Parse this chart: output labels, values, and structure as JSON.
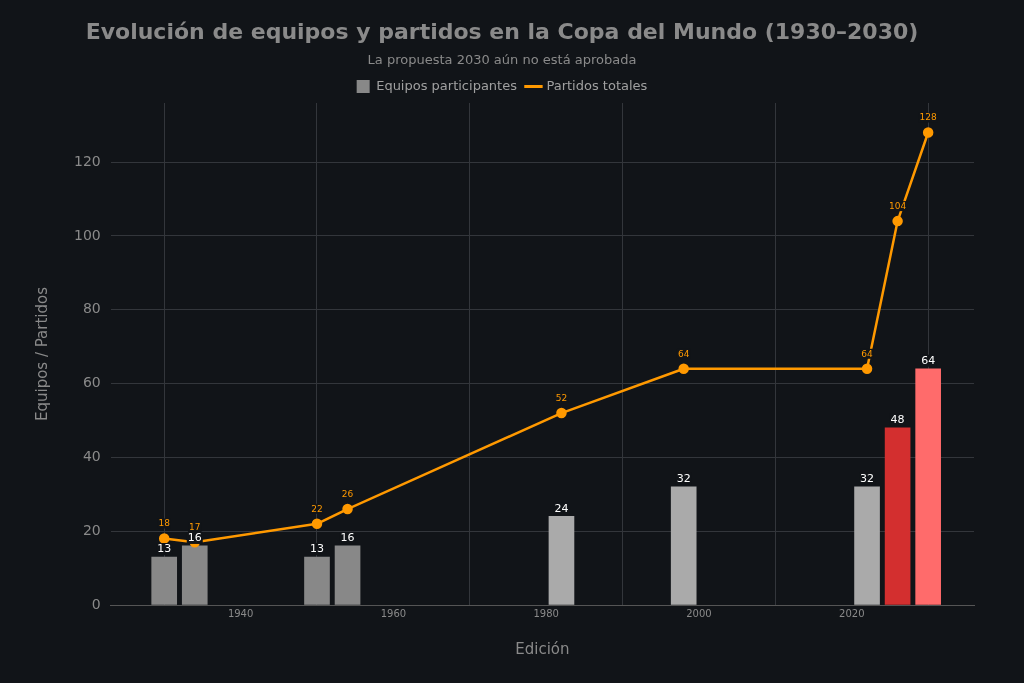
{
  "chart_data": {
    "type": "bar",
    "title": "Evolución de equipos y partidos en la Copa del Mundo (1930–2030)",
    "subtitle": "La propuesta 2030 aún no está aprobada",
    "xlabel": "Edición",
    "ylabel": "Equipos / Partidos",
    "x": [
      1930,
      1934,
      1950,
      1954,
      1982,
      1998,
      2022,
      2026,
      2030
    ],
    "series": [
      {
        "name": "Equipos participantes",
        "color": "#888888",
        "colors": [
          "#888888",
          "#888888",
          "#888888",
          "#888888",
          "#aaaaaa",
          "#aaaaaa",
          "#aaaaaa",
          "#d32f2f",
          "#ff6b6b"
        ],
        "values": [
          13,
          16,
          13,
          16,
          24,
          32,
          32,
          48,
          64
        ]
      },
      {
        "name": "Partidos totales",
        "type": "line",
        "color": "#ff9900",
        "values": [
          18,
          17,
          22,
          26,
          52,
          64,
          64,
          104,
          128
        ]
      }
    ],
    "xlim": [
      1923,
      2036
    ],
    "xticks": [
      1940,
      1960,
      1980,
      2000,
      2020
    ],
    "ylim": [
      0,
      136
    ],
    "yticks": [
      0,
      20,
      40,
      60,
      80,
      100,
      120
    ],
    "grid": true,
    "legend": "top",
    "marker": "circle",
    "data_labels": true
  }
}
